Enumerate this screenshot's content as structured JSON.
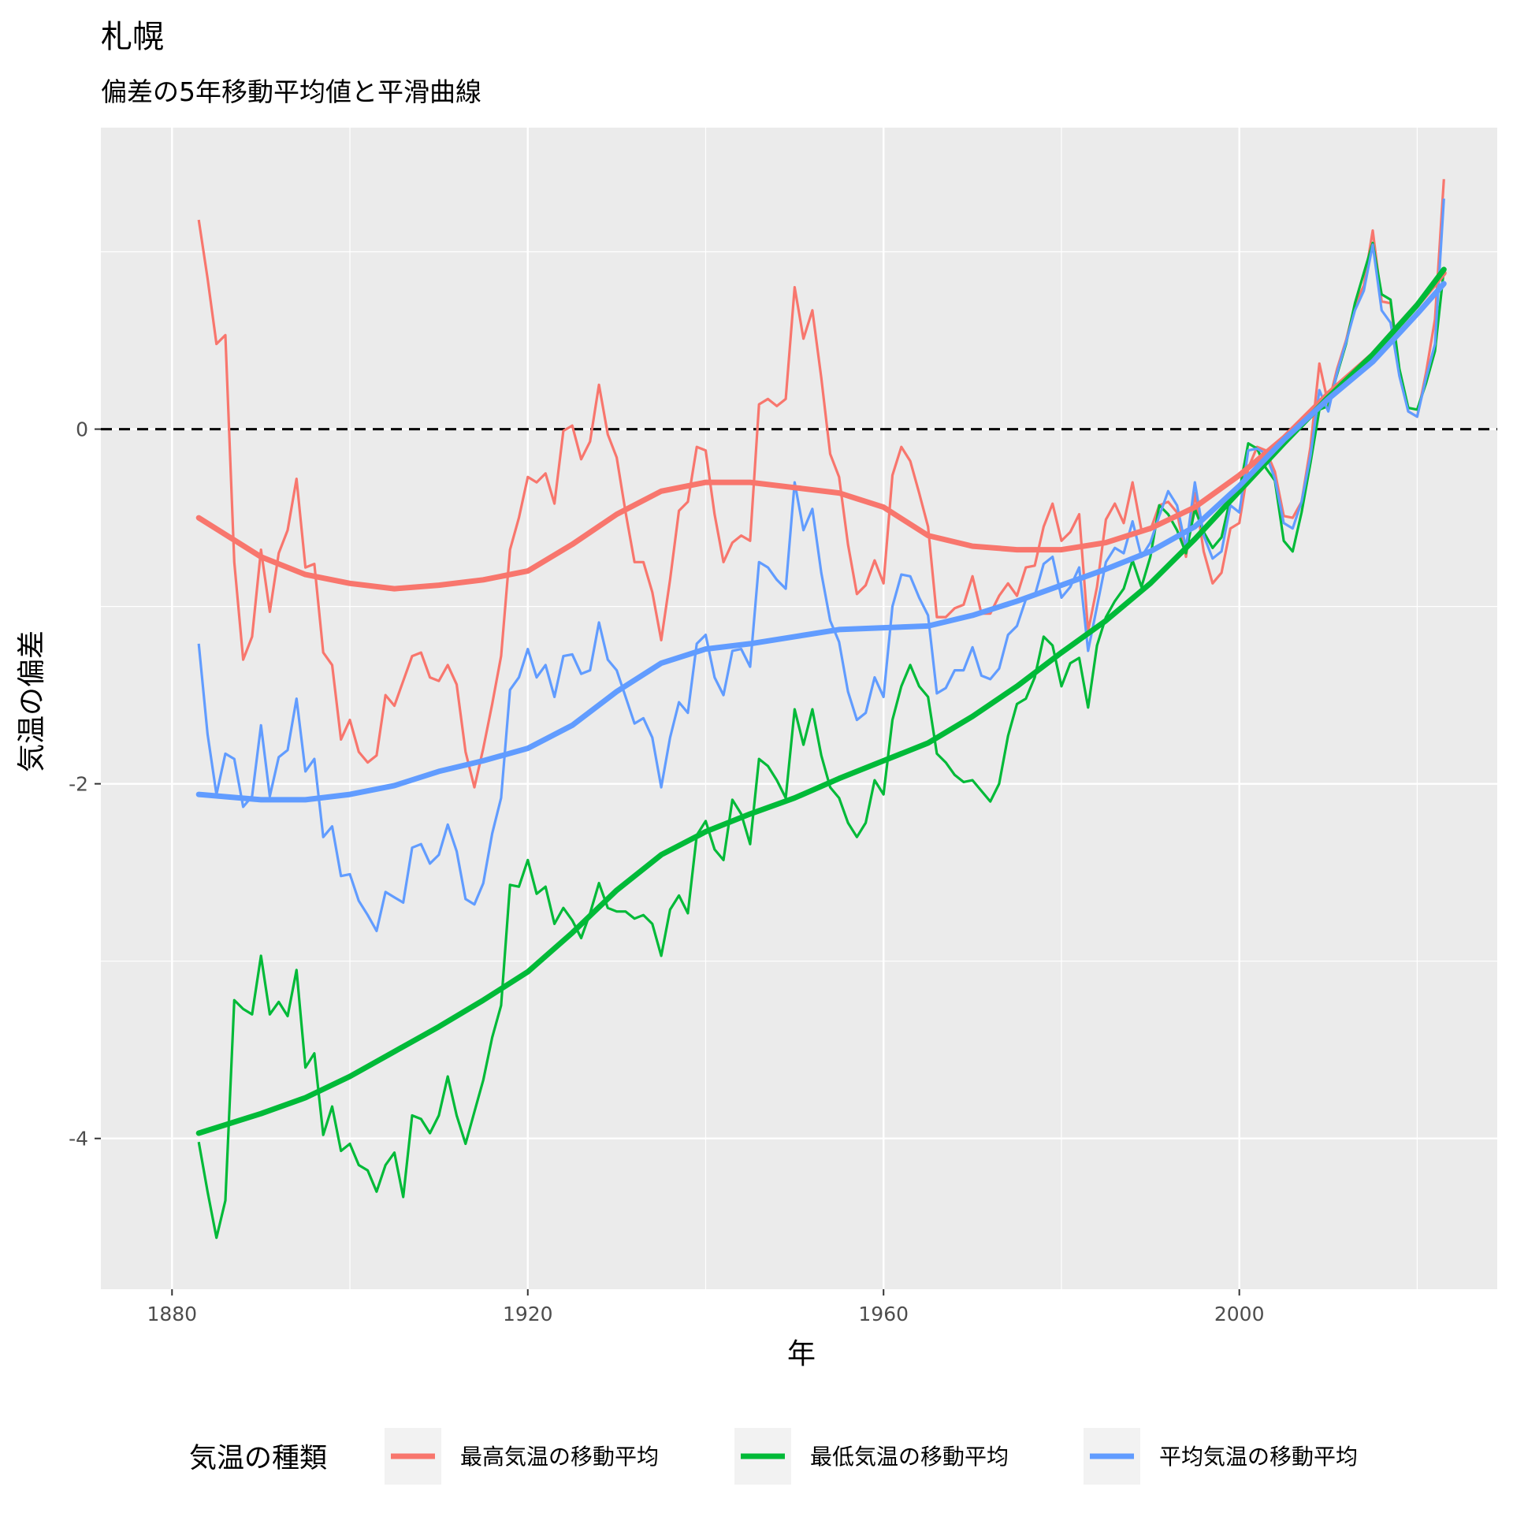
{
  "chart_data": {
    "type": "line",
    "title": "札幌",
    "subtitle": "偏差の5年移動平均値と平滑曲線",
    "xlabel": "年",
    "ylabel": "気温の偏差",
    "xlim": [
      1872,
      2029
    ],
    "ylim": [
      -4.85,
      1.7
    ],
    "x_ticks": [
      1880,
      1920,
      1960,
      2000
    ],
    "y_ticks": [
      -4,
      -2,
      0
    ],
    "y_tick_labels": [
      "-4",
      "-2",
      "0"
    ],
    "reference_line": {
      "y": 0,
      "style": "dashed",
      "color": "#000000"
    },
    "grid": true,
    "legend": {
      "title": "気温の種類",
      "position": "bottom",
      "items": [
        "最高気温の移動平均",
        "最低気温の移動平均",
        "平均気温の移動平均"
      ]
    },
    "colors": {
      "max": "#F8766D",
      "min": "#00BA38",
      "mean": "#619CFF",
      "panel": "#EBEBEB",
      "grid": "#FFFFFF"
    },
    "x": [
      1883,
      1884,
      1885,
      1886,
      1887,
      1888,
      1889,
      1890,
      1891,
      1892,
      1893,
      1894,
      1895,
      1896,
      1897,
      1898,
      1899,
      1900,
      1901,
      1902,
      1903,
      1904,
      1905,
      1906,
      1907,
      1908,
      1909,
      1910,
      1911,
      1912,
      1913,
      1914,
      1915,
      1916,
      1917,
      1918,
      1919,
      1920,
      1921,
      1922,
      1923,
      1924,
      1925,
      1926,
      1927,
      1928,
      1929,
      1930,
      1931,
      1932,
      1933,
      1934,
      1935,
      1936,
      1937,
      1938,
      1939,
      1940,
      1941,
      1942,
      1943,
      1944,
      1945,
      1946,
      1947,
      1948,
      1949,
      1950,
      1951,
      1952,
      1953,
      1954,
      1955,
      1956,
      1957,
      1958,
      1959,
      1960,
      1961,
      1962,
      1963,
      1964,
      1965,
      1966,
      1967,
      1968,
      1969,
      1970,
      1971,
      1972,
      1973,
      1974,
      1975,
      1976,
      1977,
      1978,
      1979,
      1980,
      1981,
      1982,
      1983,
      1984,
      1985,
      1986,
      1987,
      1988,
      1989,
      1990,
      1991,
      1992,
      1993,
      1994,
      1995,
      1996,
      1997,
      1998,
      1999,
      2000,
      2001,
      2002,
      2003,
      2004,
      2005,
      2006,
      2007,
      2008,
      2009,
      2010,
      2011,
      2012,
      2013,
      2014,
      2015,
      2016,
      2017,
      2018,
      2019,
      2020,
      2021,
      2022,
      2023
    ],
    "series": [
      {
        "name": "最高気温の移動平均",
        "key": "max",
        "values": [
          1.18,
          0.85,
          0.48,
          0.53,
          -0.75,
          -1.3,
          -1.17,
          -0.68,
          -1.03,
          -0.7,
          -0.57,
          -0.28,
          -0.78,
          -0.76,
          -1.26,
          -1.33,
          -1.75,
          -1.64,
          -1.82,
          -1.88,
          -1.84,
          -1.5,
          -1.56,
          -1.42,
          -1.28,
          -1.26,
          -1.4,
          -1.42,
          -1.33,
          -1.44,
          -1.82,
          -2.02,
          -1.8,
          -1.55,
          -1.28,
          -0.68,
          -0.5,
          -0.27,
          -0.3,
          -0.25,
          -0.42,
          -0.01,
          0.02,
          -0.17,
          -0.07,
          0.25,
          -0.03,
          -0.16,
          -0.47,
          -0.75,
          -0.75,
          -0.92,
          -1.19,
          -0.85,
          -0.46,
          -0.41,
          -0.1,
          -0.12,
          -0.48,
          -0.75,
          -0.64,
          -0.6,
          -0.63,
          0.14,
          0.17,
          0.13,
          0.17,
          0.8,
          0.51,
          0.67,
          0.29,
          -0.14,
          -0.27,
          -0.65,
          -0.93,
          -0.88,
          -0.74,
          -0.87,
          -0.26,
          -0.1,
          -0.18,
          -0.36,
          -0.55,
          -1.06,
          -1.06,
          -1.01,
          -0.99,
          -0.83,
          -1.04,
          -1.04,
          -0.94,
          -0.87,
          -0.94,
          -0.78,
          -0.77,
          -0.55,
          -0.42,
          -0.63,
          -0.58,
          -0.48,
          -1.14,
          -0.89,
          -0.51,
          -0.42,
          -0.53,
          -0.3,
          -0.57,
          -0.57,
          -0.43,
          -0.41,
          -0.47,
          -0.72,
          -0.36,
          -0.69,
          -0.87,
          -0.81,
          -0.56,
          -0.53,
          -0.22,
          -0.1,
          -0.12,
          -0.24,
          -0.49,
          -0.5,
          -0.41,
          -0.1,
          0.37,
          0.14,
          0.34,
          0.5,
          0.7,
          0.81,
          1.12,
          0.72,
          0.71,
          0.32,
          0.1,
          0.07,
          0.32,
          0.62,
          1.41
        ]
      },
      {
        "name": "最低気温の移動平均",
        "key": "min",
        "values": [
          -4.02,
          -4.3,
          -4.56,
          -4.35,
          -3.22,
          -3.27,
          -3.3,
          -2.97,
          -3.3,
          -3.23,
          -3.31,
          -3.05,
          -3.6,
          -3.52,
          -3.98,
          -3.82,
          -4.07,
          -4.03,
          -4.15,
          -4.18,
          -4.3,
          -4.15,
          -4.08,
          -4.33,
          -3.87,
          -3.89,
          -3.97,
          -3.87,
          -3.65,
          -3.87,
          -4.03,
          -3.85,
          -3.67,
          -3.43,
          -3.25,
          -2.57,
          -2.58,
          -2.43,
          -2.62,
          -2.58,
          -2.79,
          -2.7,
          -2.77,
          -2.87,
          -2.73,
          -2.56,
          -2.7,
          -2.72,
          -2.72,
          -2.76,
          -2.74,
          -2.79,
          -2.97,
          -2.71,
          -2.63,
          -2.73,
          -2.29,
          -2.21,
          -2.37,
          -2.43,
          -2.09,
          -2.17,
          -2.34,
          -1.86,
          -1.9,
          -1.98,
          -2.08,
          -1.58,
          -1.78,
          -1.58,
          -1.84,
          -2.02,
          -2.08,
          -2.22,
          -2.3,
          -2.22,
          -1.98,
          -2.06,
          -1.64,
          -1.45,
          -1.33,
          -1.45,
          -1.51,
          -1.83,
          -1.88,
          -1.95,
          -1.99,
          -1.98,
          -2.04,
          -2.1,
          -2.0,
          -1.73,
          -1.55,
          -1.52,
          -1.4,
          -1.17,
          -1.22,
          -1.45,
          -1.32,
          -1.29,
          -1.57,
          -1.22,
          -1.06,
          -0.97,
          -0.9,
          -0.74,
          -0.89,
          -0.72,
          -0.43,
          -0.48,
          -0.57,
          -0.7,
          -0.45,
          -0.58,
          -0.67,
          -0.61,
          -0.39,
          -0.35,
          -0.08,
          -0.11,
          -0.22,
          -0.29,
          -0.63,
          -0.69,
          -0.47,
          -0.19,
          0.11,
          0.13,
          0.31,
          0.48,
          0.71,
          0.88,
          1.05,
          0.76,
          0.73,
          0.34,
          0.12,
          0.11,
          0.26,
          0.44,
          0.9
        ]
      },
      {
        "name": "平均気温の移動平均",
        "key": "mean",
        "values": [
          -1.21,
          -1.72,
          -2.06,
          -1.83,
          -1.86,
          -2.13,
          -2.07,
          -1.67,
          -2.07,
          -1.85,
          -1.81,
          -1.52,
          -1.93,
          -1.86,
          -2.3,
          -2.24,
          -2.52,
          -2.51,
          -2.66,
          -2.74,
          -2.83,
          -2.61,
          -2.64,
          -2.67,
          -2.36,
          -2.34,
          -2.45,
          -2.4,
          -2.23,
          -2.38,
          -2.65,
          -2.68,
          -2.56,
          -2.28,
          -2.08,
          -1.47,
          -1.4,
          -1.24,
          -1.4,
          -1.33,
          -1.51,
          -1.28,
          -1.27,
          -1.38,
          -1.36,
          -1.09,
          -1.3,
          -1.36,
          -1.51,
          -1.66,
          -1.63,
          -1.74,
          -2.02,
          -1.74,
          -1.54,
          -1.6,
          -1.21,
          -1.16,
          -1.4,
          -1.5,
          -1.25,
          -1.24,
          -1.34,
          -0.75,
          -0.78,
          -0.85,
          -0.9,
          -0.3,
          -0.57,
          -0.45,
          -0.81,
          -1.08,
          -1.2,
          -1.48,
          -1.64,
          -1.6,
          -1.4,
          -1.51,
          -1.0,
          -0.82,
          -0.83,
          -0.95,
          -1.05,
          -1.49,
          -1.46,
          -1.36,
          -1.36,
          -1.23,
          -1.39,
          -1.41,
          -1.35,
          -1.16,
          -1.11,
          -0.96,
          -0.94,
          -0.76,
          -0.72,
          -0.95,
          -0.89,
          -0.78,
          -1.25,
          -1.0,
          -0.75,
          -0.67,
          -0.7,
          -0.52,
          -0.72,
          -0.64,
          -0.49,
          -0.35,
          -0.43,
          -0.67,
          -0.3,
          -0.6,
          -0.73,
          -0.69,
          -0.43,
          -0.47,
          -0.12,
          -0.11,
          -0.14,
          -0.28,
          -0.53,
          -0.56,
          -0.41,
          -0.15,
          0.22,
          0.1,
          0.32,
          0.49,
          0.67,
          0.78,
          1.04,
          0.67,
          0.6,
          0.3,
          0.1,
          0.07,
          0.29,
          0.48,
          1.3
        ]
      }
    ],
    "smooth": [
      {
        "key": "max",
        "x": [
          1883,
          1890,
          1895,
          1900,
          1905,
          1910,
          1915,
          1920,
          1925,
          1930,
          1935,
          1940,
          1945,
          1950,
          1955,
          1960,
          1965,
          1970,
          1975,
          1980,
          1985,
          1990,
          1995,
          2000,
          2005,
          2010,
          2015,
          2020,
          2023
        ],
        "values": [
          -0.5,
          -0.72,
          -0.82,
          -0.87,
          -0.9,
          -0.88,
          -0.85,
          -0.8,
          -0.65,
          -0.48,
          -0.35,
          -0.3,
          -0.3,
          -0.33,
          -0.36,
          -0.44,
          -0.6,
          -0.66,
          -0.68,
          -0.68,
          -0.64,
          -0.56,
          -0.44,
          -0.26,
          -0.05,
          0.2,
          0.42,
          0.7,
          0.88
        ]
      },
      {
        "key": "min",
        "x": [
          1883,
          1890,
          1895,
          1900,
          1905,
          1910,
          1915,
          1920,
          1925,
          1930,
          1935,
          1940,
          1945,
          1950,
          1955,
          1960,
          1965,
          1970,
          1975,
          1980,
          1985,
          1990,
          1995,
          2000,
          2005,
          2010,
          2015,
          2020,
          2023
        ],
        "values": [
          -3.97,
          -3.86,
          -3.77,
          -3.65,
          -3.51,
          -3.37,
          -3.22,
          -3.06,
          -2.84,
          -2.6,
          -2.4,
          -2.27,
          -2.17,
          -2.08,
          -1.97,
          -1.87,
          -1.77,
          -1.62,
          -1.45,
          -1.26,
          -1.08,
          -0.87,
          -0.62,
          -0.35,
          -0.08,
          0.18,
          0.42,
          0.7,
          0.9
        ]
      },
      {
        "key": "mean",
        "x": [
          1883,
          1890,
          1895,
          1900,
          1905,
          1910,
          1915,
          1920,
          1925,
          1930,
          1935,
          1940,
          1945,
          1950,
          1955,
          1960,
          1965,
          1970,
          1975,
          1980,
          1985,
          1990,
          1995,
          2000,
          2005,
          2010,
          2015,
          2020,
          2023
        ],
        "values": [
          -2.06,
          -2.09,
          -2.09,
          -2.06,
          -2.01,
          -1.93,
          -1.87,
          -1.8,
          -1.67,
          -1.48,
          -1.32,
          -1.24,
          -1.21,
          -1.17,
          -1.13,
          -1.12,
          -1.11,
          -1.05,
          -0.97,
          -0.88,
          -0.79,
          -0.69,
          -0.55,
          -0.32,
          -0.06,
          0.17,
          0.38,
          0.65,
          0.82
        ]
      }
    ]
  }
}
